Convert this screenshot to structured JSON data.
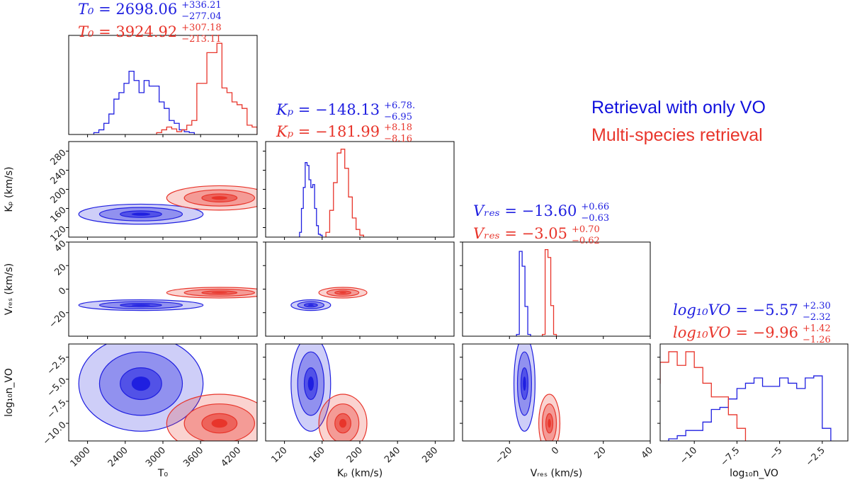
{
  "chart_data": {
    "type": "corner",
    "title": "",
    "legend": [
      {
        "label": "Retrieval with only VO",
        "color": "#1010dd"
      },
      {
        "label": "Multi-species retrieval",
        "color": "#e8352b"
      }
    ],
    "colors": {
      "vo": "#1f1fe0",
      "multi": "#e8352b"
    },
    "parameters": [
      {
        "key": "T0",
        "label": "T0",
        "axis_label": "T₀",
        "range": [
          1500,
          4500
        ],
        "ticks": [
          1800,
          2400,
          3000,
          3600,
          4200
        ]
      },
      {
        "key": "Kp",
        "label": "Kp",
        "axis_label": "Kₚ (km/s)",
        "range": [
          100,
          300
        ],
        "ticks": [
          120,
          160,
          200,
          240,
          280
        ]
      },
      {
        "key": "Vres",
        "label": "Vres",
        "axis_label": "Vᵣₑₛ (km/s)",
        "range": [
          -40,
          40
        ],
        "ticks": [
          -20,
          0,
          20,
          40
        ]
      },
      {
        "key": "logVO",
        "label": "log10nVO",
        "axis_label": "log₁₀n_VO",
        "range": [
          -12,
          -1
        ],
        "ticks": [
          -10.0,
          -7.5,
          -5.0,
          -2.5
        ]
      }
    ],
    "y_ticks": {
      "Kp": [
        120,
        160,
        200,
        240,
        280
      ],
      "Vres": [
        -20,
        0,
        20,
        40
      ],
      "logVO": [
        -10.0,
        -7.5,
        -5.0,
        -2.5
      ]
    },
    "y_tick_labels": {
      "logVO": [
        "−10.0",
        "−7.5",
        "−5.0",
        "−2.5"
      ]
    },
    "annotations": [
      {
        "param": "T0",
        "vo": {
          "label": "T₀",
          "value": "= 2698.06",
          "up": "+336.21",
          "down": "−277.04"
        },
        "multi": {
          "label": "T₀",
          "value": "= 3924.92",
          "up": "+307.18",
          "down": "−213.11"
        }
      },
      {
        "param": "Kp",
        "vo": {
          "label": "Kₚ",
          "value": "= −148.13",
          "up": "+6.78.",
          "down": "−6.95"
        },
        "multi": {
          "label": "Kₚ",
          "value": "= −181.99",
          "up": "+8.18",
          "down": "−8.16"
        }
      },
      {
        "param": "Vres",
        "vo": {
          "label": "Vᵣₑₛ",
          "value": "= −13.60",
          "up": "+0.66",
          "down": "−0.63"
        },
        "multi": {
          "label": "Vᵣₑₛ",
          "value": "= −3.05",
          "up": "+0.70",
          "down": "−0.62"
        }
      },
      {
        "param": "logVO",
        "vo": {
          "label": "log₁₀VO",
          "value": "= −5.57",
          "up": "+2.30",
          "down": "−2.32"
        },
        "multi": {
          "label": "log₁₀VO",
          "value": "= −9.96",
          "up": "+1.42",
          "down": "−1.26"
        }
      }
    ],
    "histograms": {
      "T0": {
        "vo": {
          "bins": [
            1900,
            1980,
            2060,
            2140,
            2220,
            2300,
            2380,
            2460,
            2540,
            2620,
            2700,
            2780,
            2860,
            2940,
            3020,
            3100,
            3180,
            3260,
            3340,
            3420,
            3500
          ],
          "counts": [
            0.02,
            0.05,
            0.12,
            0.22,
            0.38,
            0.45,
            0.55,
            0.68,
            0.58,
            0.45,
            0.58,
            0.52,
            0.52,
            0.35,
            0.28,
            0.15,
            0.12,
            0.05,
            0.03,
            0.02
          ]
        },
        "multi": {
          "bins": [
            2900,
            2980,
            3060,
            3140,
            3220,
            3300,
            3380,
            3460,
            3540,
            3620,
            3700,
            3780,
            3860,
            3940,
            4020,
            4100,
            4180,
            4260,
            4340,
            4420,
            4500
          ],
          "counts": [
            0.02,
            0.05,
            0.08,
            0.06,
            0.03,
            0.05,
            0.1,
            0.15,
            0.55,
            0.55,
            0.88,
            0.88,
            0.98,
            0.5,
            0.45,
            0.35,
            0.32,
            0.28,
            0.1,
            0.08
          ]
        }
      },
      "Kp": {
        "vo": {
          "bins": [
            136,
            138,
            140,
            142,
            144,
            146,
            148,
            150,
            152,
            154,
            156,
            158,
            160
          ],
          "counts": [
            0.05,
            0.3,
            0.52,
            0.78,
            0.75,
            0.6,
            0.52,
            0.55,
            0.3,
            0.12,
            0.03,
            0.02
          ]
        },
        "multi": {
          "bins": [
            164,
            168,
            172,
            176,
            180,
            184,
            188,
            192,
            196,
            200,
            204
          ],
          "counts": [
            0.05,
            0.28,
            0.57,
            0.88,
            0.92,
            0.72,
            0.42,
            0.2,
            0.08,
            0.02
          ]
        }
      },
      "Vres": {
        "vo": {
          "bins": [
            -17,
            -15.8,
            -14.6,
            -13.4,
            -12.2,
            -11.0
          ],
          "counts": [
            0.02,
            0.97,
            0.8,
            0.34,
            0.02
          ]
        },
        "multi": {
          "bins": [
            -6,
            -4.8,
            -3.6,
            -2.4,
            -1.2,
            0
          ],
          "counts": [
            0.02,
            0.99,
            0.9,
            0.35,
            0.02
          ]
        }
      },
      "logVO": {
        "vo": {
          "bins": [
            -11.5,
            -11,
            -10.5,
            -10,
            -9.5,
            -9,
            -8.5,
            -8,
            -7.5,
            -7,
            -6.5,
            -6,
            -5.5,
            -5,
            -4.5,
            -4,
            -3.5,
            -3,
            -2.5,
            -2
          ],
          "counts": [
            0.02,
            0.05,
            0.1,
            0.1,
            0.18,
            0.3,
            0.32,
            0.4,
            0.5,
            0.55,
            0.6,
            0.52,
            0.52,
            0.6,
            0.55,
            0.5,
            0.6,
            0.62,
            0.12
          ]
        },
        "multi": {
          "bins": [
            -12.5,
            -12,
            -11.5,
            -11,
            -10.5,
            -10,
            -9.5,
            -9,
            -8.5,
            -8,
            -7.5,
            -7
          ],
          "counts": [
            0.55,
            0.75,
            0.85,
            0.72,
            0.85,
            0.7,
            0.55,
            0.42,
            0.42,
            0.25,
            0.12
          ]
        }
      }
    },
    "posteriors_2d": {
      "note": "Gaussian approximations of the 1/2/3-sigma credible contours",
      "vo": {
        "T0": {
          "mu": 2650,
          "sd": 330
        },
        "Kp": {
          "mu": 148,
          "sd": 7
        },
        "Vres": {
          "mu": -13.6,
          "sd": 1.5
        },
        "logVO": {
          "mu": -5.5,
          "sd": 1.8
        }
      },
      "multi": {
        "T0": {
          "mu": 3900,
          "sd": 280
        },
        "Kp": {
          "mu": 182,
          "sd": 8.5
        },
        "Vres": {
          "mu": -3.0,
          "sd": 1.5
        },
        "logVO": {
          "mu": -10.0,
          "sd": 1.1
        }
      }
    }
  }
}
